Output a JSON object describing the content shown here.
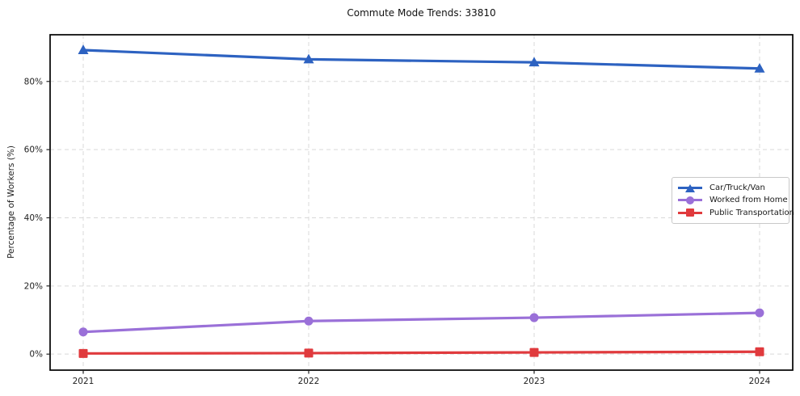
{
  "chart_data": {
    "type": "line",
    "title": "Commute Mode Trends: 33810",
    "xlabel": "",
    "ylabel": "Percentage of Workers (%)",
    "categories": [
      "2021",
      "2022",
      "2023",
      "2024"
    ],
    "series": [
      {
        "name": "Car/Truck/Van",
        "marker": "triangle",
        "color": "#2d62c1",
        "values": [
          89.2,
          86.5,
          85.6,
          83.8
        ]
      },
      {
        "name": "Worked from Home",
        "marker": "circle",
        "color": "#9a70d8",
        "values": [
          6.5,
          9.7,
          10.7,
          12.1
        ]
      },
      {
        "name": "Public Transportation",
        "marker": "square",
        "color": "#e03a3d",
        "values": [
          0.2,
          0.3,
          0.5,
          0.7
        ]
      }
    ],
    "yticks": [
      0,
      20,
      40,
      60,
      80
    ],
    "ytick_labels": [
      "0%",
      "20%",
      "40%",
      "60%",
      "80%"
    ],
    "ylim": [
      -4.7,
      93.7
    ],
    "grid": true,
    "grid_style": "dashed",
    "grid_color": "#d9d9d9",
    "axis_color": "#000000",
    "legend_position": "center right"
  }
}
